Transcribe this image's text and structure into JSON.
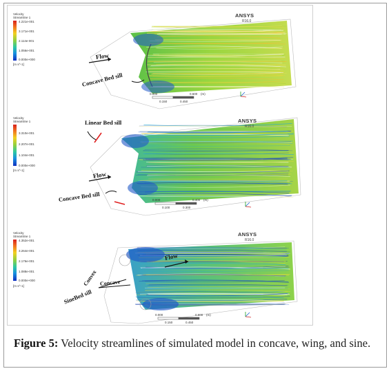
{
  "panels": [
    {
      "legend": {
        "title_line1": "Velocity",
        "title_line2": "Streamline 1",
        "ticks": [
          "4.221e-001",
          "3.171e-001",
          "2.114e-001",
          "1.056e-001",
          "0.000e+000"
        ],
        "unit": "[m s^-1]"
      },
      "brand": "ANSYS",
      "version": "R16.0",
      "scale_top": [
        "0.000",
        "0.600",
        "(m)"
      ],
      "scale_bottom": [
        "0.150",
        "0.450"
      ],
      "annotations": [
        "Flow",
        "Concave Bed sill"
      ]
    },
    {
      "legend": {
        "title_line1": "Velocity",
        "title_line2": "Streamline 1",
        "ticks": [
          "3.310e-001",
          "2.207e-001",
          "1.104e-001",
          "0.000e+000"
        ],
        "unit": "[m s^-1]"
      },
      "brand": "ANSYS",
      "version": "R16.0",
      "scale_top": [
        "0.000",
        "0.400",
        "(m)"
      ],
      "scale_bottom": [
        "0.100",
        "0.300"
      ],
      "annotations": [
        "Linear Bed sill",
        "Flow",
        "Concave Bed sill"
      ]
    },
    {
      "legend": {
        "title_line1": "Velocity",
        "title_line2": "Streamline 1",
        "ticks": [
          "4.352e-001",
          "3.264e-001",
          "2.176e-001",
          "1.088e-001",
          "0.000e+000"
        ],
        "unit": "[m s^-1]"
      },
      "brand": "ANSYS",
      "version": "R16.0",
      "scale_top": [
        "0.000",
        "0.600",
        "(m)"
      ],
      "scale_bottom": [
        "0.150",
        "0.450"
      ],
      "annotations": [
        "Flow",
        "Convex",
        "Concave",
        "SineBed sill"
      ]
    }
  ],
  "caption": {
    "label": "Figure 5:",
    "text": " Velocity streamlines of simulated model in concave, wing, and sine."
  },
  "colors": {
    "flow_green": "#7fd23a",
    "flow_yellow": "#e8d83a",
    "flow_blue": "#1f58c8",
    "flow_cyan": "#2aa8d0",
    "sill_red": "#e02020"
  }
}
